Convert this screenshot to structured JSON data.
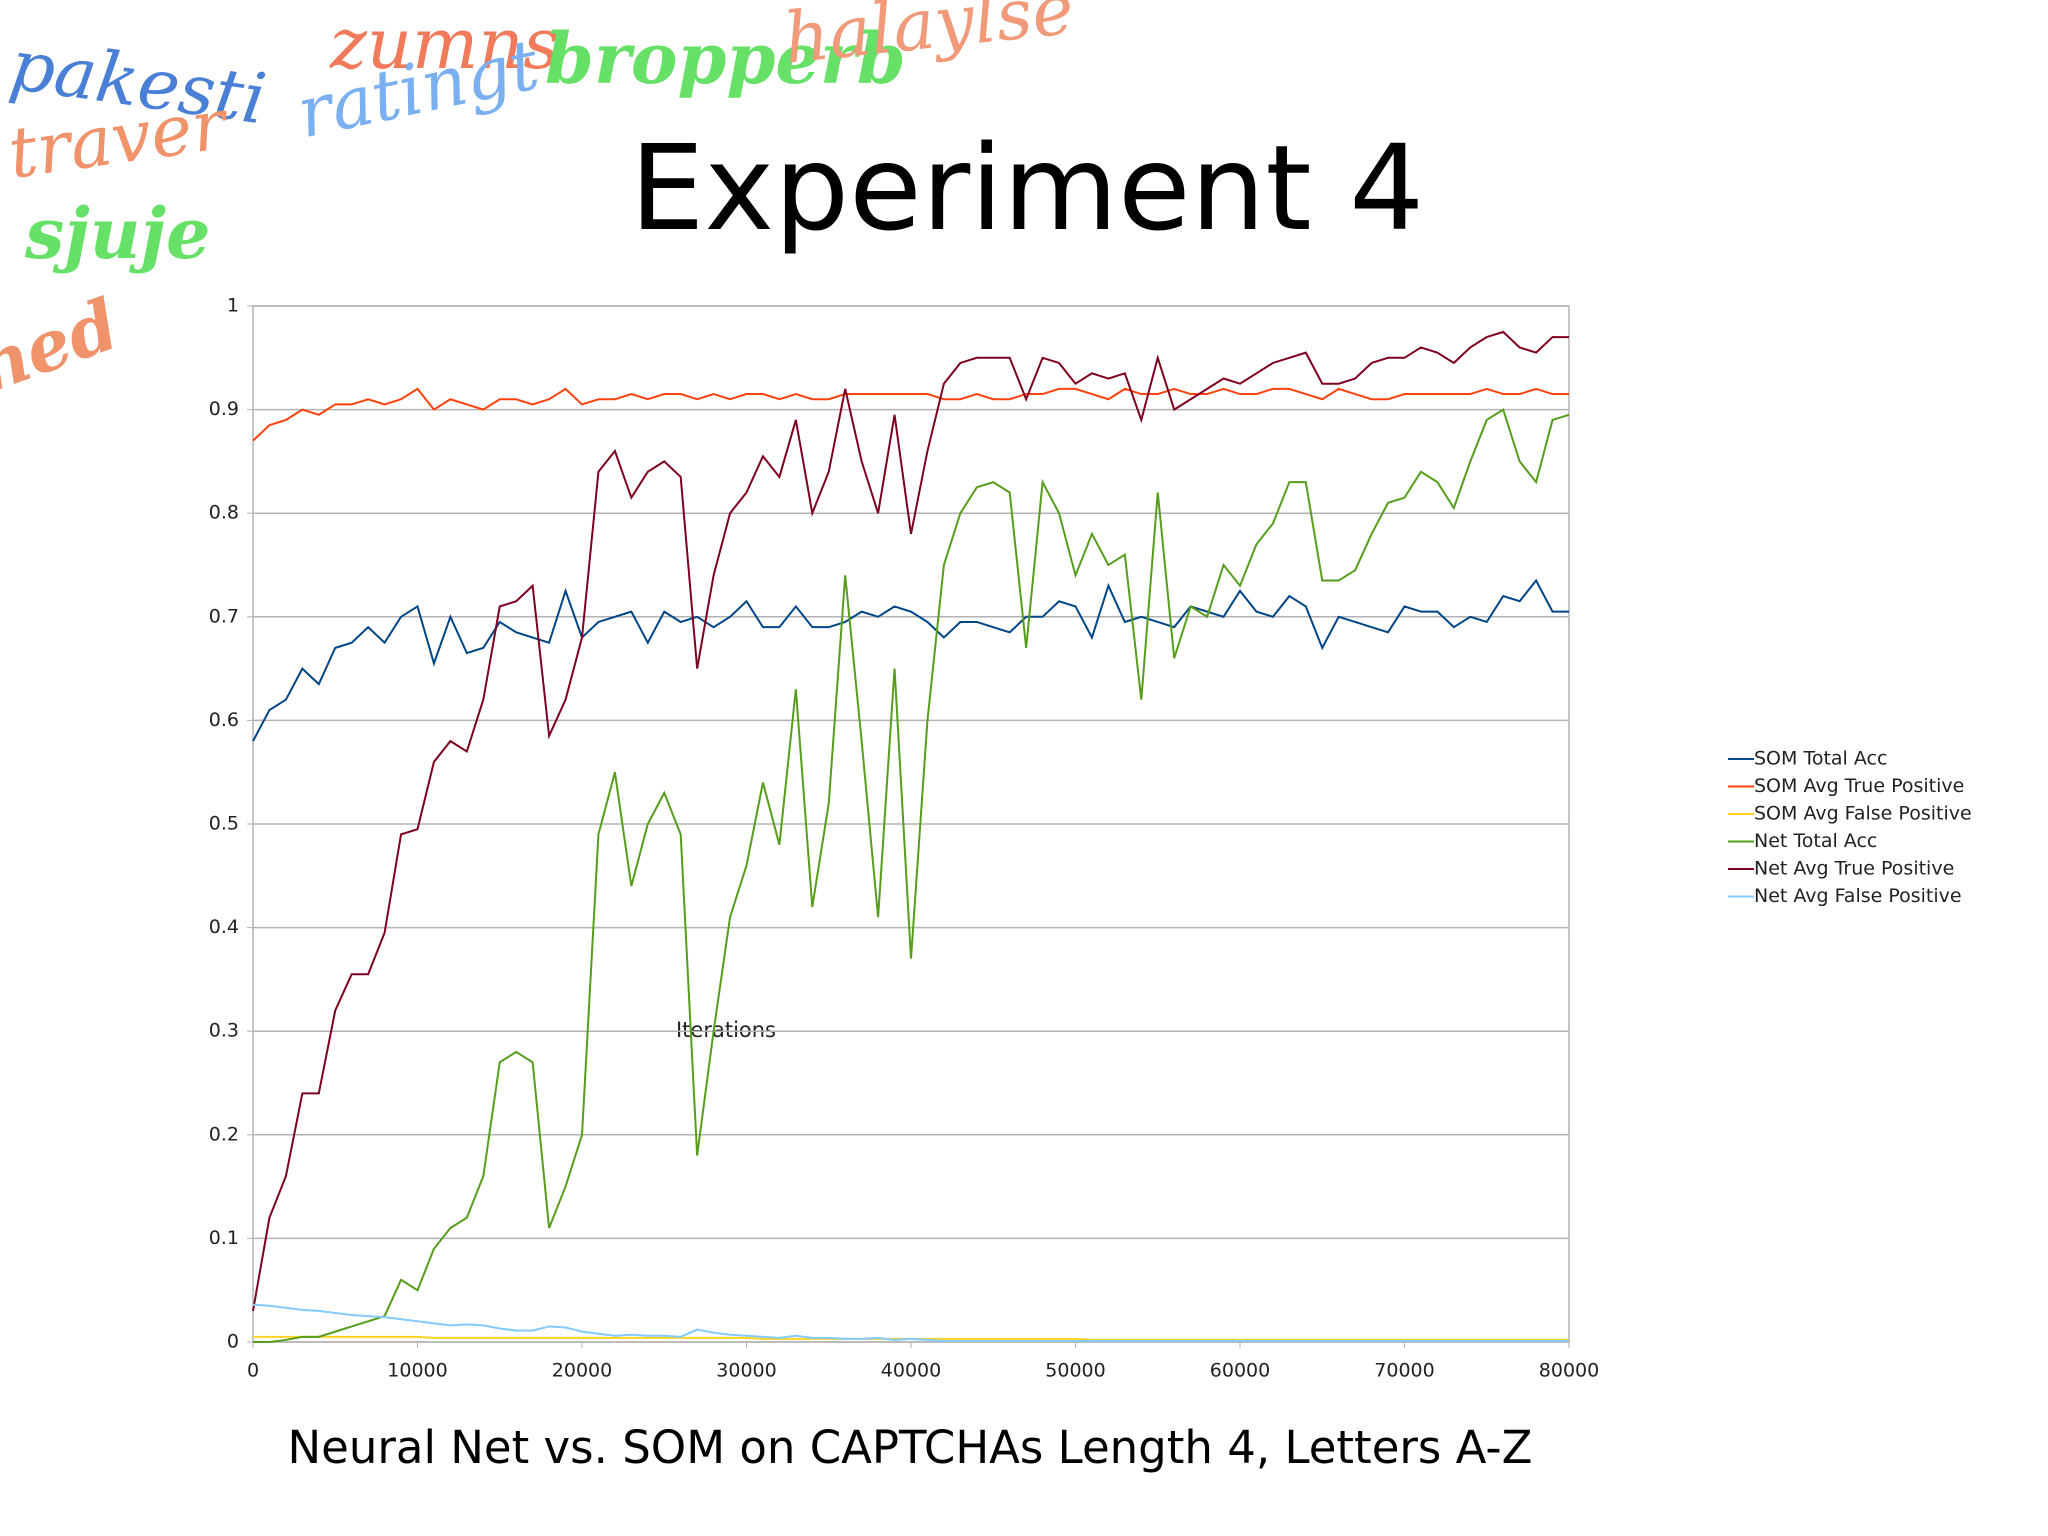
{
  "decoration_words": [
    "pakesti",
    "zumns",
    "bropperb",
    "halaylse",
    "traver",
    "ratingt",
    "sjuje",
    "ned"
  ],
  "chart_data": {
    "type": "line",
    "title": "Experiment 4",
    "caption": "Neural Net vs. SOM on CAPTCHAs Length 4, Letters A-Z",
    "x_label": "Iterations",
    "x": [
      0,
      1000,
      2000,
      3000,
      4000,
      5000,
      6000,
      7000,
      8000,
      9000,
      10000,
      11000,
      12000,
      13000,
      14000,
      15000,
      16000,
      17000,
      18000,
      19000,
      20000,
      21000,
      22000,
      23000,
      24000,
      25000,
      26000,
      27000,
      28000,
      29000,
      30000,
      31000,
      32000,
      33000,
      34000,
      35000,
      36000,
      37000,
      38000,
      39000,
      40000,
      41000,
      42000,
      43000,
      44000,
      45000,
      46000,
      47000,
      48000,
      49000,
      50000,
      51000,
      52000,
      53000,
      54000,
      55000,
      56000,
      57000,
      58000,
      59000,
      60000,
      61000,
      62000,
      63000,
      64000,
      65000,
      66000,
      67000,
      68000,
      69000,
      70000,
      71000,
      72000,
      73000,
      74000,
      75000,
      76000,
      77000,
      78000,
      79000,
      80000
    ],
    "xlim": [
      0,
      80000
    ],
    "xticks": [
      0,
      10000,
      20000,
      30000,
      40000,
      50000,
      60000,
      70000,
      80000
    ],
    "ylim": [
      0,
      1
    ],
    "yticks": [
      0,
      0.1,
      0.2,
      0.3,
      0.4,
      0.5,
      0.6,
      0.7,
      0.8,
      0.9,
      1
    ],
    "grid": true,
    "legend": "right",
    "series": [
      {
        "name": "SOM Total Acc",
        "color": "#004586",
        "values": [
          0.58,
          0.61,
          0.62,
          0.65,
          0.635,
          0.67,
          0.675,
          0.69,
          0.675,
          0.7,
          0.71,
          0.655,
          0.7,
          0.665,
          0.67,
          0.695,
          0.685,
          0.68,
          0.675,
          0.725,
          0.68,
          0.695,
          0.7,
          0.705,
          0.675,
          0.705,
          0.695,
          0.7,
          0.69,
          0.7,
          0.715,
          0.69,
          0.69,
          0.71,
          0.69,
          0.69,
          0.695,
          0.705,
          0.7,
          0.71,
          0.705,
          0.695,
          0.68,
          0.695,
          0.695,
          0.69,
          0.685,
          0.7,
          0.7,
          0.715,
          0.71,
          0.68,
          0.73,
          0.695,
          0.7,
          0.695,
          0.69,
          0.71,
          0.705,
          0.7,
          0.725,
          0.705,
          0.7,
          0.72,
          0.71,
          0.67,
          0.7,
          0.695,
          0.69,
          0.685,
          0.71,
          0.705,
          0.705,
          0.69,
          0.7,
          0.695,
          0.72,
          0.715,
          0.735,
          0.705,
          0.705
        ]
      },
      {
        "name": "SOM Avg True Positive",
        "color": "#ff420e",
        "values": [
          0.87,
          0.885,
          0.89,
          0.9,
          0.895,
          0.905,
          0.905,
          0.91,
          0.905,
          0.91,
          0.92,
          0.9,
          0.91,
          0.905,
          0.9,
          0.91,
          0.91,
          0.905,
          0.91,
          0.92,
          0.905,
          0.91,
          0.91,
          0.915,
          0.91,
          0.915,
          0.915,
          0.91,
          0.915,
          0.91,
          0.915,
          0.915,
          0.91,
          0.915,
          0.91,
          0.91,
          0.915,
          0.915,
          0.915,
          0.915,
          0.915,
          0.915,
          0.91,
          0.91,
          0.915,
          0.91,
          0.91,
          0.915,
          0.915,
          0.92,
          0.92,
          0.915,
          0.91,
          0.92,
          0.915,
          0.915,
          0.92,
          0.915,
          0.915,
          0.92,
          0.915,
          0.915,
          0.92,
          0.92,
          0.915,
          0.91,
          0.92,
          0.915,
          0.91,
          0.91,
          0.915,
          0.915,
          0.915,
          0.915,
          0.915,
          0.92,
          0.915,
          0.915,
          0.92,
          0.915,
          0.915
        ]
      },
      {
        "name": "SOM Avg False Positive",
        "color": "#ffd320",
        "values": [
          0.005,
          0.005,
          0.005,
          0.005,
          0.005,
          0.005,
          0.005,
          0.005,
          0.005,
          0.005,
          0.005,
          0.004,
          0.004,
          0.004,
          0.004,
          0.004,
          0.004,
          0.004,
          0.004,
          0.004,
          0.004,
          0.004,
          0.004,
          0.004,
          0.004,
          0.004,
          0.004,
          0.004,
          0.004,
          0.004,
          0.004,
          0.003,
          0.003,
          0.003,
          0.003,
          0.003,
          0.003,
          0.003,
          0.003,
          0.003,
          0.003,
          0.003,
          0.003,
          0.003,
          0.003,
          0.003,
          0.003,
          0.003,
          0.003,
          0.003,
          0.003,
          0.002,
          0.002,
          0.002,
          0.002,
          0.002,
          0.002,
          0.002,
          0.002,
          0.002,
          0.002,
          0.002,
          0.002,
          0.002,
          0.002,
          0.002,
          0.002,
          0.002,
          0.002,
          0.002,
          0.002,
          0.002,
          0.002,
          0.002,
          0.002,
          0.002,
          0.002,
          0.002,
          0.002,
          0.002,
          0.002
        ]
      },
      {
        "name": "Net Total Acc",
        "color": "#579d1c",
        "values": [
          0,
          0,
          0.002,
          0.005,
          0.005,
          0.01,
          0.015,
          0.02,
          0.025,
          0.06,
          0.05,
          0.09,
          0.11,
          0.12,
          0.16,
          0.27,
          0.28,
          0.27,
          0.11,
          0.15,
          0.2,
          0.49,
          0.55,
          0.44,
          0.5,
          0.53,
          0.49,
          0.18,
          0.3,
          0.41,
          0.46,
          0.54,
          0.48,
          0.63,
          0.42,
          0.52,
          0.74,
          0.58,
          0.41,
          0.65,
          0.37,
          0.6,
          0.75,
          0.8,
          0.825,
          0.83,
          0.82,
          0.67,
          0.83,
          0.8,
          0.74,
          0.78,
          0.75,
          0.76,
          0.62,
          0.82,
          0.66,
          0.71,
          0.7,
          0.75,
          0.73,
          0.77,
          0.79,
          0.83,
          0.83,
          0.735,
          0.735,
          0.745,
          0.78,
          0.81,
          0.815,
          0.84,
          0.83,
          0.805,
          0.85,
          0.89,
          0.9,
          0.85,
          0.83,
          0.89,
          0.895
        ]
      },
      {
        "name": "Net Avg True Positive",
        "color": "#7e0021",
        "values": [
          0.03,
          0.12,
          0.16,
          0.24,
          0.24,
          0.32,
          0.355,
          0.355,
          0.395,
          0.49,
          0.495,
          0.56,
          0.58,
          0.57,
          0.62,
          0.71,
          0.715,
          0.73,
          0.585,
          0.62,
          0.68,
          0.84,
          0.86,
          0.815,
          0.84,
          0.85,
          0.835,
          0.65,
          0.74,
          0.8,
          0.82,
          0.855,
          0.835,
          0.89,
          0.8,
          0.84,
          0.92,
          0.85,
          0.8,
          0.895,
          0.78,
          0.86,
          0.925,
          0.945,
          0.95,
          0.95,
          0.95,
          0.91,
          0.95,
          0.945,
          0.925,
          0.935,
          0.93,
          0.935,
          0.89,
          0.95,
          0.9,
          0.91,
          0.92,
          0.93,
          0.925,
          0.935,
          0.945,
          0.95,
          0.955,
          0.925,
          0.925,
          0.93,
          0.945,
          0.95,
          0.95,
          0.96,
          0.955,
          0.945,
          0.96,
          0.97,
          0.975,
          0.96,
          0.955,
          0.97,
          0.97
        ]
      },
      {
        "name": "Net Avg False Positive",
        "color": "#83caff",
        "values": [
          0.036,
          0.035,
          0.033,
          0.031,
          0.03,
          0.028,
          0.026,
          0.025,
          0.024,
          0.022,
          0.02,
          0.018,
          0.016,
          0.017,
          0.016,
          0.013,
          0.011,
          0.011,
          0.015,
          0.014,
          0.01,
          0.008,
          0.006,
          0.007,
          0.006,
          0.006,
          0.005,
          0.012,
          0.009,
          0.007,
          0.006,
          0.005,
          0.004,
          0.006,
          0.004,
          0.004,
          0.003,
          0.003,
          0.004,
          0.002,
          0.003,
          0.002,
          0.001,
          0.001,
          0.001,
          0.001,
          0.001,
          0.001,
          0.001,
          0.001,
          0.001,
          0.001,
          0.001,
          0.001,
          0.001,
          0.001,
          0.001,
          0.001,
          0.001,
          0.001,
          0.001,
          0.001,
          0.001,
          0.001,
          0.001,
          0.001,
          0.001,
          0.001,
          0.001,
          0.001,
          0.001,
          0.001,
          0.001,
          0.001,
          0.001,
          0.001,
          0.001,
          0.001,
          0.001,
          0.001,
          0.001
        ]
      }
    ]
  }
}
